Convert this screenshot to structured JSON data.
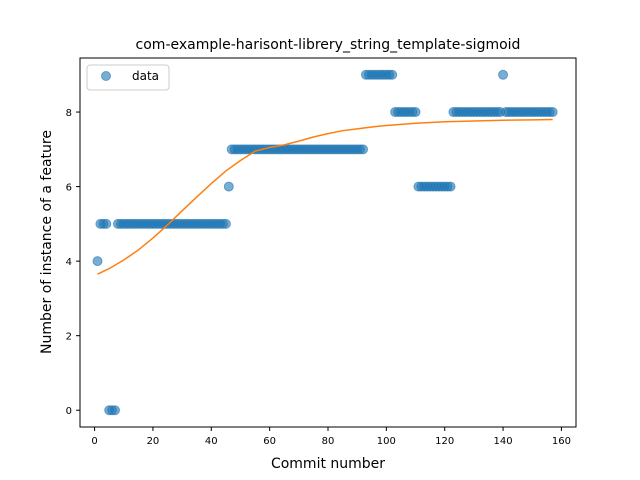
{
  "chart_data": {
    "type": "scatter",
    "title": "com-example-harisont-librery_string_template-sigmoid",
    "xlabel": "Commit number",
    "ylabel": "Number of instance of a feature",
    "xlim": [
      -5,
      165
    ],
    "ylim": [
      -0.45,
      9.45
    ],
    "xticks": [
      0,
      20,
      40,
      60,
      80,
      100,
      120,
      140,
      160
    ],
    "yticks": [
      0,
      2,
      4,
      6,
      8
    ],
    "grid": false,
    "legend_position": "top-left",
    "series": [
      {
        "name": "data",
        "kind": "scatter",
        "color": "#1f77b4",
        "points": [
          [
            1,
            4
          ],
          [
            2,
            5
          ],
          [
            3,
            5
          ],
          [
            4,
            5
          ],
          [
            5,
            0
          ],
          [
            6,
            0
          ],
          [
            7,
            0
          ],
          [
            8,
            5
          ],
          [
            9,
            5
          ],
          [
            10,
            5
          ],
          [
            11,
            5
          ],
          [
            12,
            5
          ],
          [
            13,
            5
          ],
          [
            14,
            5
          ],
          [
            15,
            5
          ],
          [
            16,
            5
          ],
          [
            17,
            5
          ],
          [
            18,
            5
          ],
          [
            19,
            5
          ],
          [
            20,
            5
          ],
          [
            21,
            5
          ],
          [
            22,
            5
          ],
          [
            23,
            5
          ],
          [
            24,
            5
          ],
          [
            25,
            5
          ],
          [
            26,
            5
          ],
          [
            27,
            5
          ],
          [
            28,
            5
          ],
          [
            29,
            5
          ],
          [
            30,
            5
          ],
          [
            31,
            5
          ],
          [
            32,
            5
          ],
          [
            33,
            5
          ],
          [
            34,
            5
          ],
          [
            35,
            5
          ],
          [
            36,
            5
          ],
          [
            37,
            5
          ],
          [
            38,
            5
          ],
          [
            39,
            5
          ],
          [
            40,
            5
          ],
          [
            41,
            5
          ],
          [
            42,
            5
          ],
          [
            43,
            5
          ],
          [
            44,
            5
          ],
          [
            45,
            5
          ],
          [
            46,
            6
          ],
          [
            47,
            7
          ],
          [
            48,
            7
          ],
          [
            49,
            7
          ],
          [
            50,
            7
          ],
          [
            51,
            7
          ],
          [
            52,
            7
          ],
          [
            53,
            7
          ],
          [
            54,
            7
          ],
          [
            55,
            7
          ],
          [
            56,
            7
          ],
          [
            57,
            7
          ],
          [
            58,
            7
          ],
          [
            59,
            7
          ],
          [
            60,
            7
          ],
          [
            61,
            7
          ],
          [
            62,
            7
          ],
          [
            63,
            7
          ],
          [
            64,
            7
          ],
          [
            65,
            7
          ],
          [
            66,
            7
          ],
          [
            67,
            7
          ],
          [
            68,
            7
          ],
          [
            69,
            7
          ],
          [
            70,
            7
          ],
          [
            71,
            7
          ],
          [
            72,
            7
          ],
          [
            73,
            7
          ],
          [
            74,
            7
          ],
          [
            75,
            7
          ],
          [
            76,
            7
          ],
          [
            77,
            7
          ],
          [
            78,
            7
          ],
          [
            79,
            7
          ],
          [
            80,
            7
          ],
          [
            81,
            7
          ],
          [
            82,
            7
          ],
          [
            83,
            7
          ],
          [
            84,
            7
          ],
          [
            85,
            7
          ],
          [
            86,
            7
          ],
          [
            87,
            7
          ],
          [
            88,
            7
          ],
          [
            89,
            7
          ],
          [
            90,
            7
          ],
          [
            91,
            7
          ],
          [
            92,
            7
          ],
          [
            93,
            9
          ],
          [
            94,
            9
          ],
          [
            95,
            9
          ],
          [
            96,
            9
          ],
          [
            97,
            9
          ],
          [
            98,
            9
          ],
          [
            99,
            9
          ],
          [
            100,
            9
          ],
          [
            101,
            9
          ],
          [
            102,
            9
          ],
          [
            103,
            8
          ],
          [
            104,
            8
          ],
          [
            105,
            8
          ],
          [
            106,
            8
          ],
          [
            107,
            8
          ],
          [
            108,
            8
          ],
          [
            109,
            8
          ],
          [
            110,
            8
          ],
          [
            111,
            6
          ],
          [
            112,
            6
          ],
          [
            113,
            6
          ],
          [
            114,
            6
          ],
          [
            115,
            6
          ],
          [
            116,
            6
          ],
          [
            117,
            6
          ],
          [
            118,
            6
          ],
          [
            119,
            6
          ],
          [
            120,
            6
          ],
          [
            121,
            6
          ],
          [
            122,
            6
          ],
          [
            123,
            8
          ],
          [
            124,
            8
          ],
          [
            125,
            8
          ],
          [
            126,
            8
          ],
          [
            127,
            8
          ],
          [
            128,
            8
          ],
          [
            129,
            8
          ],
          [
            130,
            8
          ],
          [
            131,
            8
          ],
          [
            132,
            8
          ],
          [
            133,
            8
          ],
          [
            134,
            8
          ],
          [
            135,
            8
          ],
          [
            136,
            8
          ],
          [
            137,
            8
          ],
          [
            138,
            8
          ],
          [
            139,
            8
          ],
          [
            140,
            9
          ],
          [
            141,
            8
          ],
          [
            142,
            8
          ],
          [
            143,
            8
          ],
          [
            144,
            8
          ],
          [
            145,
            8
          ],
          [
            146,
            8
          ],
          [
            147,
            8
          ],
          [
            148,
            8
          ],
          [
            149,
            8
          ],
          [
            150,
            8
          ],
          [
            151,
            8
          ],
          [
            152,
            8
          ],
          [
            153,
            8
          ],
          [
            154,
            8
          ],
          [
            155,
            8
          ],
          [
            156,
            8
          ],
          [
            157,
            8
          ]
        ]
      },
      {
        "kind": "line",
        "color": "#ff7f0e",
        "points": [
          [
            1,
            3.65
          ],
          [
            5,
            3.8
          ],
          [
            10,
            4.03
          ],
          [
            15,
            4.3
          ],
          [
            20,
            4.62
          ],
          [
            25,
            4.97
          ],
          [
            30,
            5.35
          ],
          [
            35,
            5.72
          ],
          [
            40,
            6.08
          ],
          [
            45,
            6.42
          ],
          [
            50,
            6.7
          ],
          [
            55,
            6.95
          ],
          [
            60,
            7.05
          ],
          [
            65,
            7.12
          ],
          [
            70,
            7.22
          ],
          [
            75,
            7.33
          ],
          [
            80,
            7.42
          ],
          [
            85,
            7.5
          ],
          [
            90,
            7.55
          ],
          [
            95,
            7.6
          ],
          [
            100,
            7.64
          ],
          [
            110,
            7.7
          ],
          [
            120,
            7.74
          ],
          [
            130,
            7.76
          ],
          [
            140,
            7.78
          ],
          [
            150,
            7.79
          ],
          [
            157,
            7.8
          ]
        ]
      }
    ]
  }
}
